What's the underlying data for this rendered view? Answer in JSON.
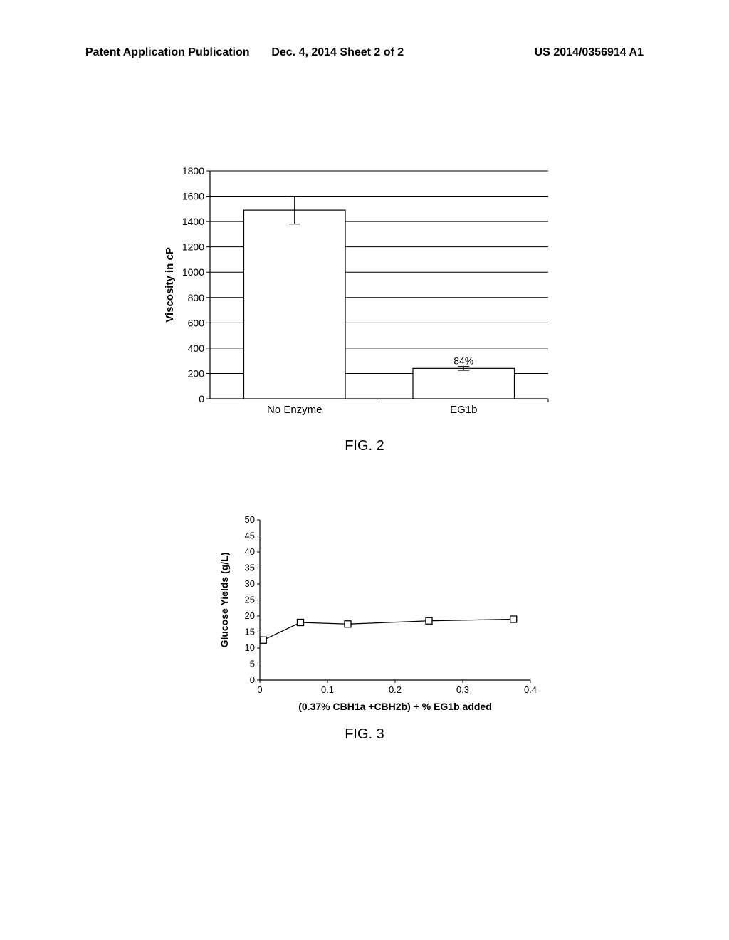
{
  "header": {
    "left": "Patent Application Publication",
    "center": "Dec. 4, 2014  Sheet 2 of 2",
    "right": "US 2014/0356914 A1"
  },
  "fig2": {
    "label": "FIG. 2",
    "type": "bar",
    "ylabel": "Viscosity in cP",
    "ylim": [
      0,
      1800
    ],
    "ytick_step": 200,
    "yticks": [
      0,
      200,
      400,
      600,
      800,
      1000,
      1200,
      1400,
      1600,
      1800
    ],
    "categories": [
      "No Enzyme",
      "EG1b"
    ],
    "values": [
      1490,
      240
    ],
    "error_bars": [
      110,
      15
    ],
    "annotation": {
      "index": 1,
      "text": "84%"
    },
    "bar_fill": "#ffffff",
    "bar_stroke": "#000000",
    "grid_color": "#000000",
    "background": "#ffffff",
    "bar_width": 0.6
  },
  "fig3": {
    "label": "FIG. 3",
    "type": "line",
    "ylabel": "Glucose Yields (g/L)",
    "xlabel": "(0.37% CBH1a +CBH2b) + % EG1b added",
    "xlim": [
      0,
      0.4
    ],
    "ylim": [
      0,
      50
    ],
    "xticks": [
      0,
      0.1,
      0.2,
      0.3,
      0.4
    ],
    "yticks": [
      0,
      5,
      10,
      15,
      20,
      25,
      30,
      35,
      40,
      45,
      50
    ],
    "points": [
      {
        "x": 0.005,
        "y": 12.5
      },
      {
        "x": 0.06,
        "y": 18
      },
      {
        "x": 0.13,
        "y": 17.5
      },
      {
        "x": 0.25,
        "y": 18.5
      },
      {
        "x": 0.375,
        "y": 19
      }
    ],
    "marker_style": "square-open",
    "marker_size": 9,
    "line_color": "#000000",
    "marker_stroke": "#000000",
    "marker_fill": "#ffffff",
    "background": "#ffffff"
  }
}
